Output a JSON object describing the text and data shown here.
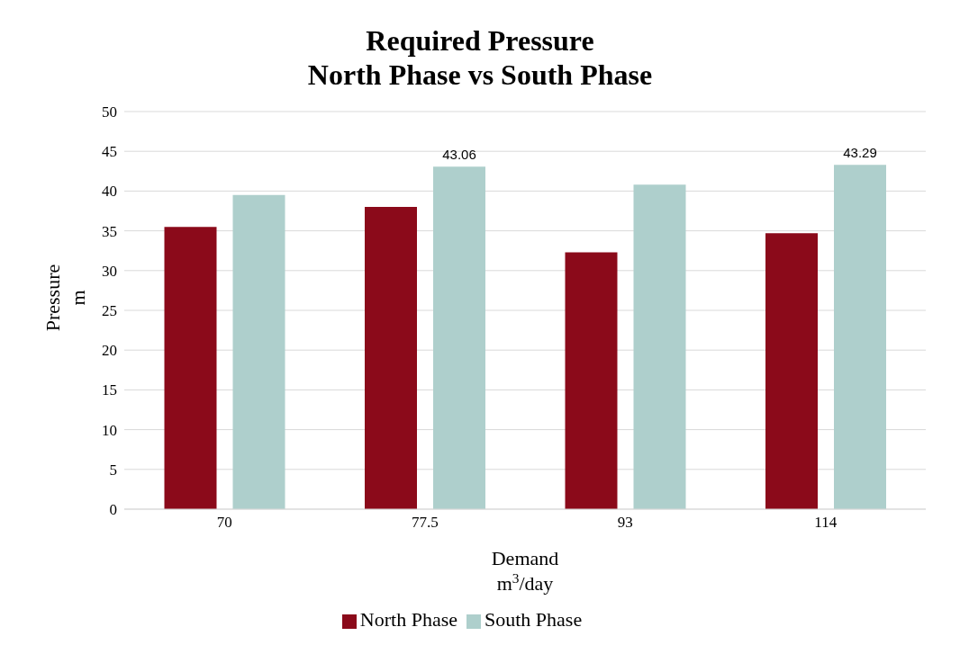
{
  "chart_data": {
    "type": "bar",
    "title": "Required Pressure\nNorth Phase vs South Phase",
    "xlabel": "Demand\nm$^{3}$/day",
    "ylabel": "Pressure\nm",
    "categories": [
      "70",
      "77.5",
      "93",
      "114"
    ],
    "series": [
      {
        "name": "North Phase",
        "color": "#8b0a1a",
        "values": [
          35.5,
          38,
          32.3,
          34.7
        ]
      },
      {
        "name": "South Phase",
        "color": "#aecfcc",
        "values": [
          39.5,
          43.06,
          40.8,
          43.29
        ],
        "value_labels": [
          null,
          "43.06",
          null,
          "43.29"
        ]
      }
    ],
    "ylim": [
      0,
      50
    ],
    "yticks": [
      0,
      5,
      10,
      15,
      20,
      25,
      30,
      35,
      40,
      45,
      50
    ],
    "grid": "y",
    "legend": "bottom"
  }
}
